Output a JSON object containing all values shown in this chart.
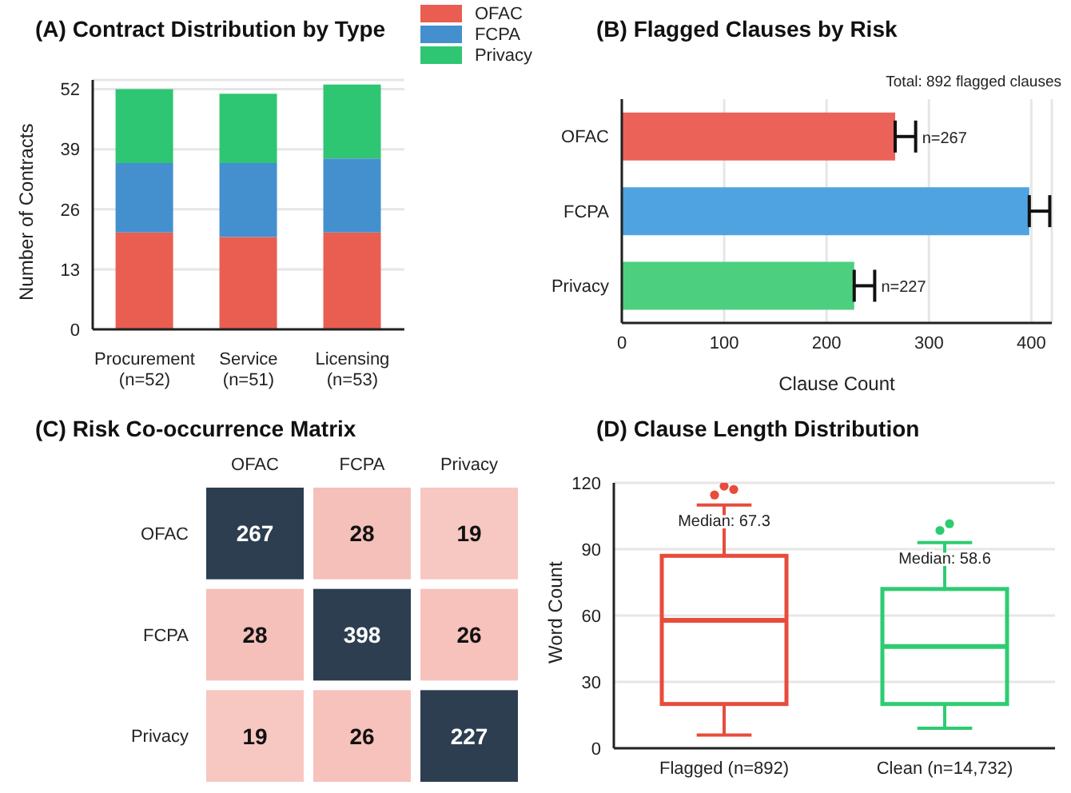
{
  "chart_data": [
    {
      "type": "bar",
      "title": "(A) Contract Distribution by Type",
      "ylabel": "Number of Contracts",
      "categories": [
        "Procurement\n(n=52)",
        "Service\n(n=51)",
        "Licensing\n(n=53)"
      ],
      "stacked": true,
      "series": [
        {
          "name": "OFAC",
          "color": "#e95e50",
          "values": [
            21,
            20,
            21
          ]
        },
        {
          "name": "FCPA",
          "color": "#4490cf",
          "values": [
            15,
            16,
            16
          ]
        },
        {
          "name": "Privacy",
          "color": "#2ec673",
          "values": [
            16,
            15,
            16
          ]
        }
      ],
      "ylim": [
        0,
        54
      ],
      "yticks": [
        0,
        13,
        26,
        39,
        52
      ],
      "grid": "y",
      "legend": "top right"
    },
    {
      "type": "bar",
      "orientation": "horizontal",
      "title": "(B) Flagged Clauses by Risk",
      "xlabel": "Clause Count",
      "categories": [
        "OFAC",
        "FCPA",
        "Privacy"
      ],
      "values": [
        267,
        398,
        227
      ],
      "colors": [
        "#eb6358",
        "#4fa3e0",
        "#4cd080"
      ],
      "errors": [
        [
          267,
          287
        ],
        [
          398,
          418
        ],
        [
          227,
          247
        ]
      ],
      "value_labels": [
        "n=267",
        null,
        "n=227"
      ],
      "xlim": [
        0,
        420
      ],
      "xticks": [
        0,
        100,
        200,
        300,
        400
      ],
      "grid": "x",
      "annotations": [
        "Total: 892 flagged clauses"
      ]
    },
    {
      "type": "heatmap",
      "title": "(C) Risk Co-occurrence Matrix",
      "categories": [
        "OFAC",
        "FCPA",
        "Privacy"
      ],
      "y_categories": [
        "OFAC",
        "FCPA",
        "Privacy"
      ],
      "cells": [
        [
          267,
          28,
          19
        ],
        [
          28,
          398,
          26
        ],
        [
          19,
          26,
          227
        ]
      ],
      "data_labels": true
    },
    {
      "type": "box",
      "title": "(D) Clause Length Distribution",
      "ylabel": "Word Count",
      "categories": [
        "Flagged (n=892)",
        "Clean (n=14,732)"
      ],
      "colors": [
        "#e74c3c",
        "#2ecc71"
      ],
      "boxes": [
        {
          "low": 6,
          "q1": 20,
          "median": 57.8,
          "q3": 87,
          "high": 110,
          "outliers": [
            114.5,
            118.5,
            117
          ]
        },
        {
          "low": 9,
          "q1": 20,
          "median": 46,
          "q3": 72,
          "high": 93,
          "outliers": [
            98.5,
            101.5
          ]
        }
      ],
      "ylim": [
        0,
        120
      ],
      "yticks": [
        0,
        30,
        60,
        90,
        120
      ],
      "grid": "y",
      "annotations": [
        {
          "text": "Median: 67.3",
          "x": "Flagged (n=892)",
          "y": 103
        },
        {
          "text": "Median: 58.6",
          "x": "Clean (n=14,732)",
          "y": 86
        }
      ]
    }
  ]
}
